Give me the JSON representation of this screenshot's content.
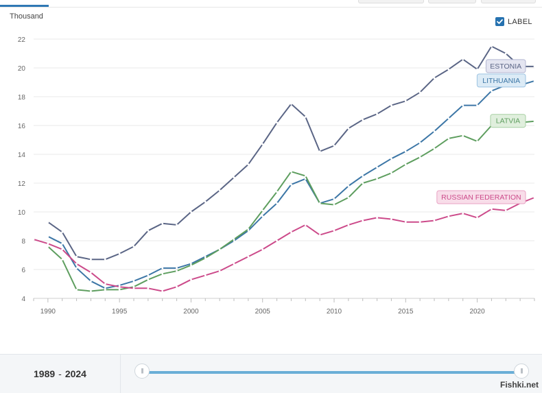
{
  "toggle": {
    "label": "LABEL",
    "checked": true
  },
  "range": {
    "start": "1989",
    "end": "2024"
  },
  "watermark": "Fishki.net",
  "colors": {
    "estonia": "#5a6585",
    "lithuania": "#3c76a6",
    "latvia": "#5e9e5f",
    "russia": "#cc4a8a",
    "accent": "#2672b0",
    "slider": "#6aaed6"
  },
  "chart_data": {
    "type": "line",
    "title": "",
    "xlabel": "",
    "ylabel": "Thousand",
    "xlim": [
      1989,
      2024
    ],
    "ylim": [
      4,
      22
    ],
    "xticks": [
      1990,
      1995,
      2000,
      2005,
      2010,
      2015,
      2020
    ],
    "yticks": [
      4,
      6,
      8,
      10,
      12,
      14,
      16,
      18,
      20,
      22
    ],
    "grid": true,
    "series": [
      {
        "name": "ESTONIA",
        "color": "#5a6585",
        "label_bg": "#e4e5f1",
        "label_border": "#b4b8d2",
        "x": [
          1990,
          1991,
          1992,
          1993,
          1994,
          1995,
          1996,
          1997,
          1998,
          1999,
          2000,
          2001,
          2002,
          2003,
          2004,
          2005,
          2006,
          2007,
          2008,
          2009,
          2010,
          2011,
          2012,
          2013,
          2014,
          2015,
          2016,
          2017,
          2018,
          2019,
          2020,
          2021,
          2022,
          2023,
          2024
        ],
        "y": [
          9.3,
          8.6,
          6.9,
          6.7,
          6.7,
          7.1,
          7.6,
          8.7,
          9.2,
          9.1,
          10.0,
          10.7,
          11.5,
          12.4,
          13.3,
          14.7,
          16.2,
          17.5,
          16.6,
          14.2,
          14.6,
          15.8,
          16.4,
          16.8,
          17.4,
          17.7,
          18.3,
          19.3,
          19.9,
          20.6,
          19.9,
          21.5,
          21.0,
          20.1,
          20.1
        ]
      },
      {
        "name": "LITHUANIA",
        "color": "#3c76a6",
        "label_bg": "#dcebf6",
        "label_border": "#9cc3e2",
        "x": [
          1990,
          1991,
          1992,
          1993,
          1994,
          1995,
          1996,
          1997,
          1998,
          1999,
          2000,
          2001,
          2002,
          2003,
          2004,
          2005,
          2006,
          2007,
          2008,
          2009,
          2010,
          2011,
          2012,
          2013,
          2014,
          2015,
          2016,
          2017,
          2018,
          2019,
          2020,
          2021,
          2022,
          2023,
          2024
        ],
        "y": [
          8.3,
          7.8,
          6.1,
          5.2,
          4.7,
          4.9,
          5.2,
          5.6,
          6.1,
          6.1,
          6.4,
          6.9,
          7.4,
          8.0,
          8.7,
          9.7,
          10.6,
          11.9,
          12.3,
          10.6,
          10.9,
          11.8,
          12.5,
          13.1,
          13.7,
          14.2,
          14.8,
          15.6,
          16.5,
          17.4,
          17.4,
          18.4,
          18.8,
          18.8,
          19.1
        ]
      },
      {
        "name": "LATVIA",
        "color": "#5e9e5f",
        "label_bg": "#e0efdd",
        "label_border": "#a8d0a4",
        "x": [
          1990,
          1991,
          1992,
          1993,
          1994,
          1995,
          1996,
          1997,
          1998,
          1999,
          2000,
          2001,
          2002,
          2003,
          2004,
          2005,
          2006,
          2007,
          2008,
          2009,
          2010,
          2011,
          2012,
          2013,
          2014,
          2015,
          2016,
          2017,
          2018,
          2019,
          2020,
          2021,
          2022,
          2023,
          2024
        ],
        "y": [
          7.6,
          6.7,
          4.6,
          4.5,
          4.6,
          4.6,
          4.8,
          5.3,
          5.7,
          5.9,
          6.3,
          6.8,
          7.4,
          8.1,
          8.8,
          10.1,
          11.4,
          12.8,
          12.5,
          10.6,
          10.5,
          11.0,
          12.0,
          12.3,
          12.7,
          13.3,
          13.8,
          14.4,
          15.1,
          15.3,
          14.9,
          16.0,
          16.4,
          16.2,
          16.3
        ]
      },
      {
        "name": "RUSSIAN FEDERATION",
        "color": "#cc4a8a",
        "label_bg": "#f8dde9",
        "label_border": "#e9a2c4",
        "x": [
          1989,
          1990,
          1991,
          1992,
          1993,
          1994,
          1995,
          1996,
          1997,
          1998,
          1999,
          2000,
          2001,
          2002,
          2003,
          2004,
          2005,
          2006,
          2007,
          2008,
          2009,
          2010,
          2011,
          2012,
          2013,
          2014,
          2015,
          2016,
          2017,
          2018,
          2019,
          2020,
          2021,
          2022,
          2023,
          2024
        ],
        "y": [
          8.1,
          7.8,
          7.4,
          6.4,
          5.8,
          5.0,
          4.8,
          4.7,
          4.7,
          4.5,
          4.8,
          5.3,
          5.6,
          5.9,
          6.4,
          6.9,
          7.4,
          8.0,
          8.6,
          9.1,
          8.4,
          8.7,
          9.1,
          9.4,
          9.6,
          9.5,
          9.3,
          9.3,
          9.4,
          9.7,
          9.9,
          9.6,
          10.2,
          10.1,
          10.6,
          11.0
        ]
      }
    ]
  }
}
